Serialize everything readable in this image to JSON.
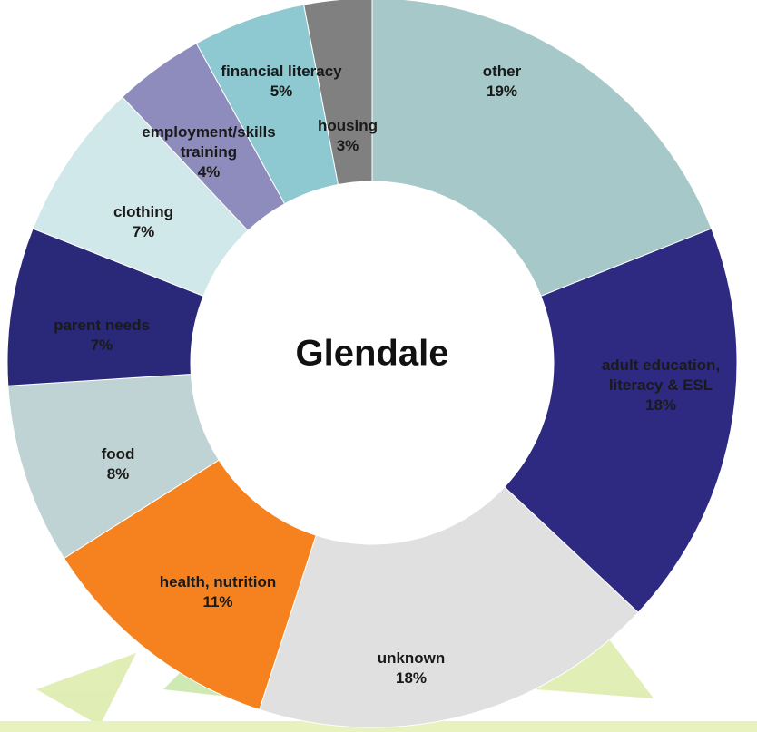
{
  "chart_data": {
    "type": "donut",
    "title": "Glendale",
    "categories": [
      "other",
      "adult education, literacy & ESL",
      "unknown",
      "health, nutrition",
      "food",
      "parent needs",
      "clothing",
      "employment/skills training",
      "financial literacy",
      "housing"
    ],
    "values": [
      19,
      18,
      18,
      11,
      8,
      7,
      7,
      4,
      5,
      3
    ],
    "value_labels": [
      "19%",
      "18%",
      "18%",
      "11%",
      "8%",
      "7%",
      "7%",
      "4%",
      "5%",
      "3%"
    ],
    "colors": [
      "#a6c8c8",
      "#2e2a82",
      "#e0e0e0",
      "#f5821f",
      "#bfd3d4",
      "#2a2878",
      "#d0e8ea",
      "#8e8cbc",
      "#8ec8d0",
      "#808080"
    ]
  }
}
